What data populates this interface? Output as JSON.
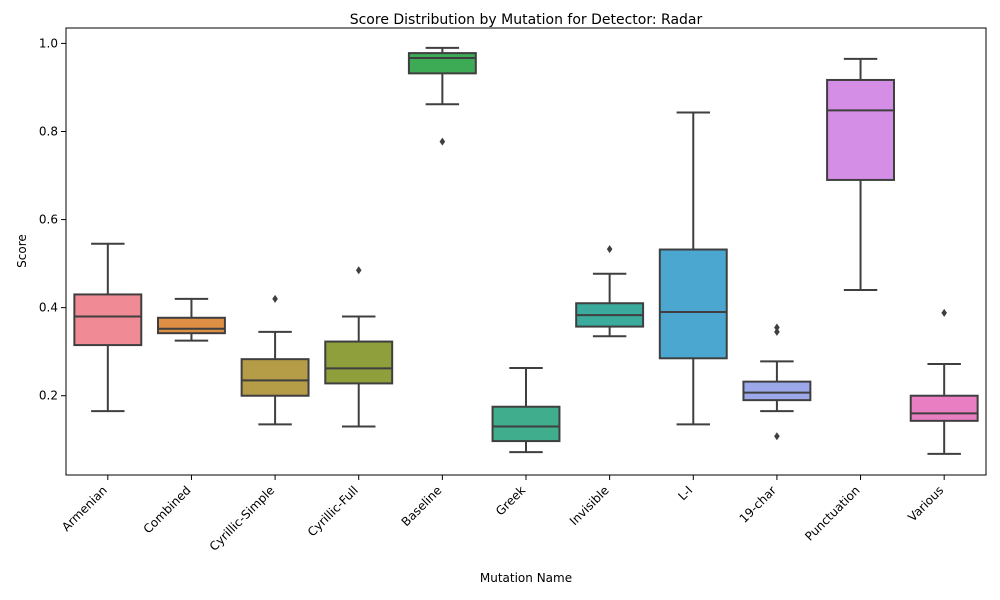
{
  "chart_data": {
    "type": "box",
    "title": "Score Distribution by Mutation for Detector: Radar",
    "xlabel": "Mutation Name",
    "ylabel": "Score",
    "ylim": [
      0.02,
      1.035
    ],
    "yticks": [
      0.2,
      0.4,
      0.6,
      0.8,
      1.0
    ],
    "ytick_labels": [
      "0.2",
      "0.4",
      "0.6",
      "0.8",
      "1.0"
    ],
    "grid": false,
    "categories": [
      "Armenian",
      "Combined",
      "Cyrillic-Simple",
      "Cyrillic-Full",
      "Baseline",
      "Greek",
      "Invisible",
      "L-I",
      "19-char",
      "Punctuation",
      "Various"
    ],
    "colors": [
      "#f08a94",
      "#de8f44",
      "#b59c46",
      "#8e9f3c",
      "#3daa55",
      "#40ad8d",
      "#3aab9c",
      "#4ba7cf",
      "#9ca8e9",
      "#d58ee6",
      "#e97ec2"
    ],
    "boxes": [
      {
        "whisker_low": 0.165,
        "q1": 0.315,
        "median": 0.38,
        "q3": 0.43,
        "whisker_high": 0.545,
        "fliers": []
      },
      {
        "whisker_low": 0.325,
        "q1": 0.342,
        "median": 0.352,
        "q3": 0.377,
        "whisker_high": 0.42,
        "fliers": []
      },
      {
        "whisker_low": 0.135,
        "q1": 0.2,
        "median": 0.235,
        "q3": 0.283,
        "whisker_high": 0.345,
        "fliers": [
          0.42
        ]
      },
      {
        "whisker_low": 0.13,
        "q1": 0.228,
        "median": 0.262,
        "q3": 0.323,
        "whisker_high": 0.38,
        "fliers": [
          0.485
        ]
      },
      {
        "whisker_low": 0.862,
        "q1": 0.932,
        "median": 0.967,
        "q3": 0.978,
        "whisker_high": 0.99,
        "fliers": [
          0.777
        ]
      },
      {
        "whisker_low": 0.072,
        "q1": 0.097,
        "median": 0.13,
        "q3": 0.175,
        "whisker_high": 0.263,
        "fliers": []
      },
      {
        "whisker_low": 0.335,
        "q1": 0.357,
        "median": 0.383,
        "q3": 0.41,
        "whisker_high": 0.477,
        "fliers": [
          0.533
        ]
      },
      {
        "whisker_low": 0.135,
        "q1": 0.285,
        "median": 0.39,
        "q3": 0.532,
        "whisker_high": 0.843,
        "fliers": []
      },
      {
        "whisker_low": 0.165,
        "q1": 0.19,
        "median": 0.207,
        "q3": 0.232,
        "whisker_high": 0.278,
        "fliers": [
          0.345,
          0.355,
          0.108
        ]
      },
      {
        "whisker_low": 0.44,
        "q1": 0.69,
        "median": 0.848,
        "q3": 0.917,
        "whisker_high": 0.965,
        "fliers": []
      },
      {
        "whisker_low": 0.068,
        "q1": 0.143,
        "median": 0.16,
        "q3": 0.2,
        "whisker_high": 0.272,
        "fliers": [
          0.388
        ]
      }
    ]
  }
}
